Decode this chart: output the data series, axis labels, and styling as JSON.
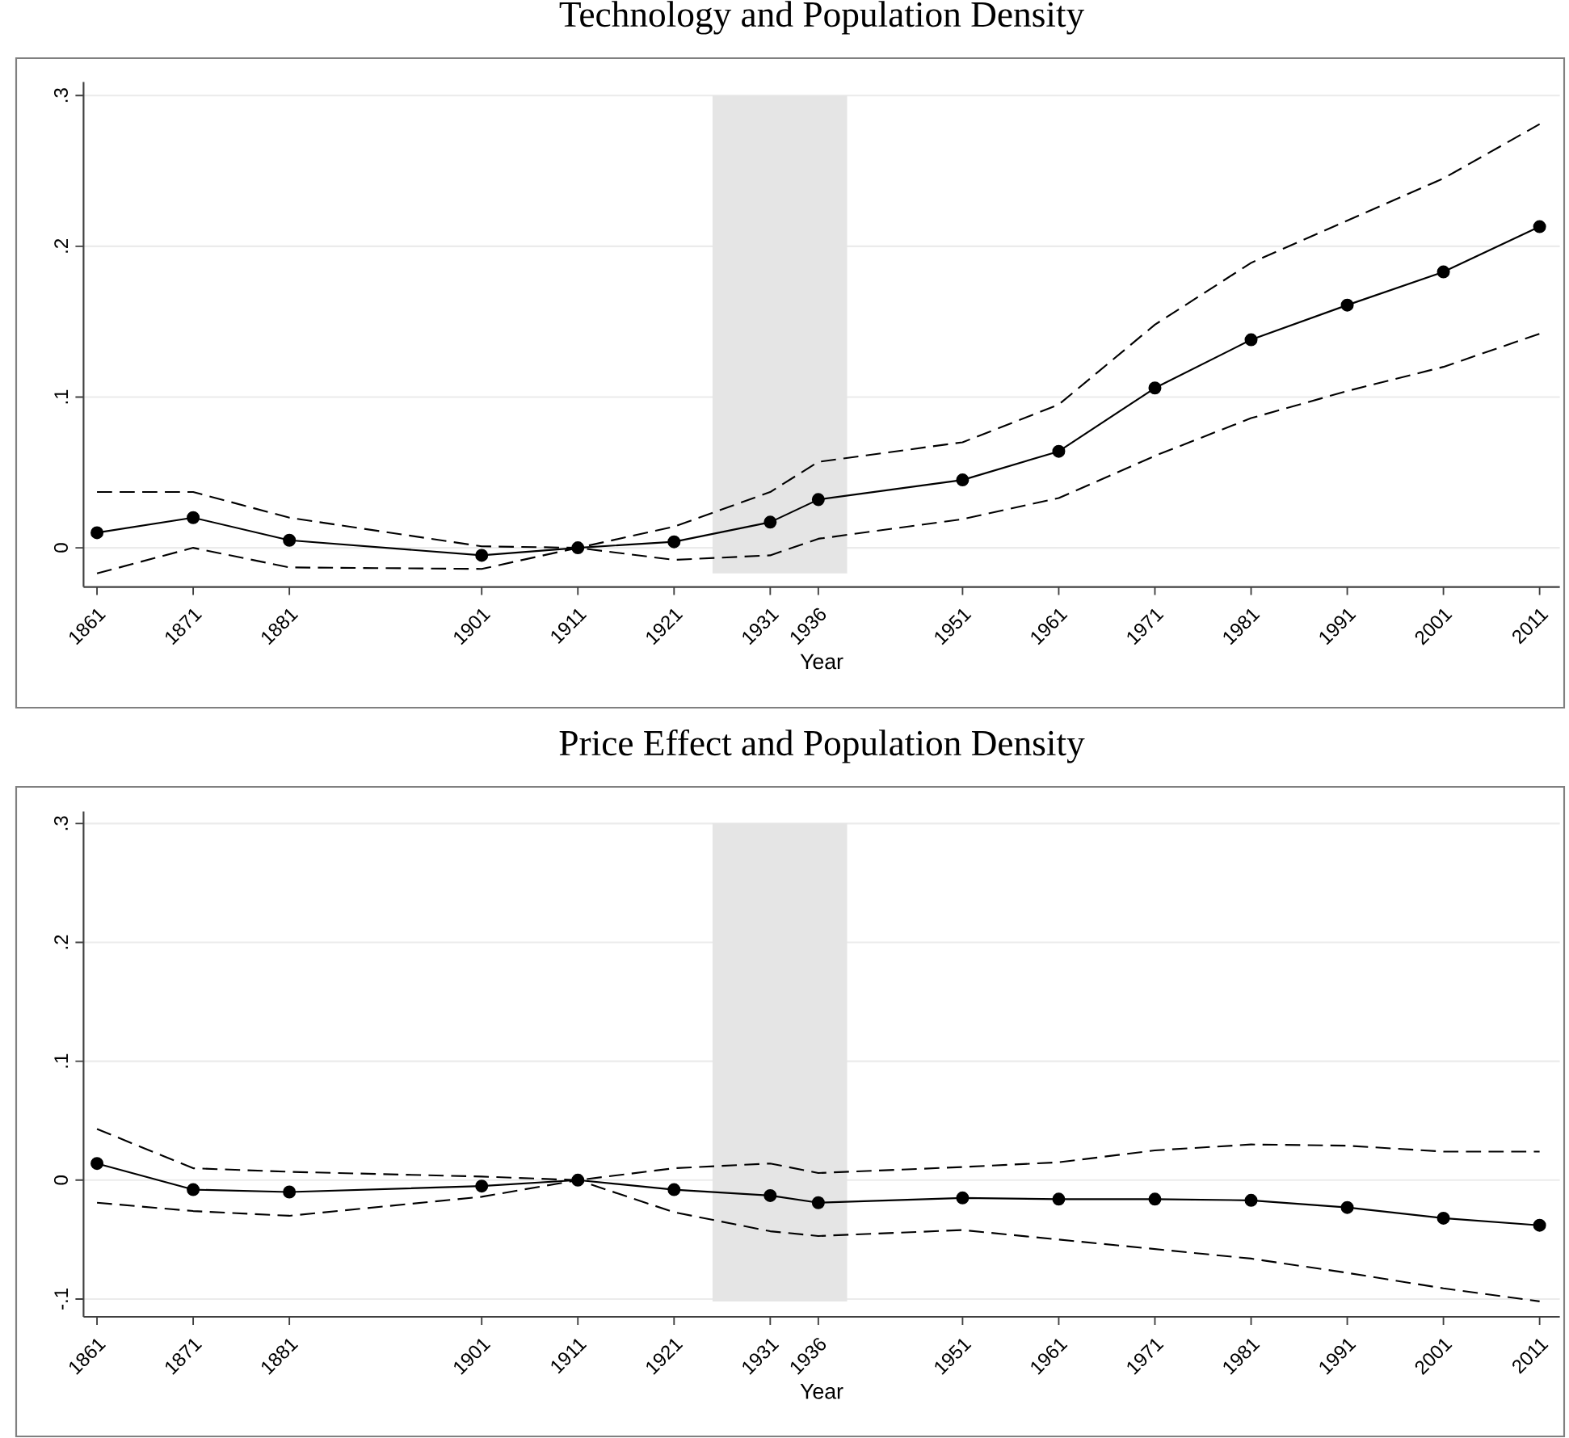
{
  "chart_data": [
    {
      "type": "line",
      "title": "Technology and Population Density",
      "xlabel": "Year",
      "x": [
        1861,
        1871,
        1881,
        1901,
        1911,
        1921,
        1931,
        1936,
        1951,
        1961,
        1971,
        1981,
        1991,
        2001,
        2011
      ],
      "series": [
        {
          "color": "#000000",
          "marker": "none",
          "line_style": "dashed",
          "values": [
            0.037,
            0.037,
            0.02,
            0.001,
            0,
            0.014,
            0.037,
            0.057,
            0.07,
            0.095,
            0.148,
            0.189,
            0.217,
            0.245,
            0.281
          ]
        },
        {
          "color": "#000000",
          "marker": "circle",
          "line_style": "solid",
          "values": [
            0.01,
            0.02,
            0.005,
            -0.005,
            0,
            0.004,
            0.017,
            0.032,
            0.045,
            0.064,
            0.106,
            0.138,
            0.161,
            0.183,
            0.213
          ]
        },
        {
          "color": "#000000",
          "marker": "none",
          "line_style": "dashed",
          "values": [
            -0.017,
            0,
            -0.013,
            -0.014,
            0,
            -0.008,
            -0.005,
            0.006,
            0.019,
            0.033,
            0.061,
            0.086,
            0.104,
            0.12,
            0.142
          ]
        }
      ],
      "bands": [
        {
          "axis": "x",
          "from": 1925,
          "to": 1939,
          "color": "#e5e5e5"
        }
      ],
      "xlim": [
        1859.6,
        2013.1
      ],
      "ylim": [
        -0.026,
        0.309
      ],
      "xticks": [
        1861,
        1871,
        1881,
        1901,
        1911,
        1921,
        1931,
        1936,
        1951,
        1961,
        1971,
        1981,
        1991,
        2001,
        2011
      ],
      "yticks": [
        {
          "value": 0,
          "label": "0"
        },
        {
          "value": 0.1,
          "label": ".1"
        },
        {
          "value": 0.2,
          "label": ".2"
        },
        {
          "value": 0.3,
          "label": ".3"
        }
      ],
      "grid": "y"
    },
    {
      "type": "line",
      "title": "Price Effect and Population Density",
      "xlabel": "Year",
      "x": [
        1861,
        1871,
        1881,
        1901,
        1911,
        1921,
        1931,
        1936,
        1951,
        1961,
        1971,
        1981,
        1991,
        2001,
        2011
      ],
      "series": [
        {
          "color": "#000000",
          "marker": "none",
          "line_style": "dashed",
          "values": [
            0.043,
            0.01,
            0.007,
            0.003,
            0,
            0.01,
            0.014,
            0.006,
            0.011,
            0.015,
            0.025,
            0.03,
            0.029,
            0.024,
            0.024
          ]
        },
        {
          "color": "#000000",
          "marker": "circle",
          "line_style": "solid",
          "values": [
            0.014,
            -0.008,
            -0.01,
            -0.005,
            0,
            -0.008,
            -0.013,
            -0.019,
            -0.015,
            -0.016,
            -0.016,
            -0.017,
            -0.023,
            -0.032,
            -0.038
          ]
        },
        {
          "color": "#000000",
          "marker": "none",
          "line_style": "dashed",
          "values": [
            -0.019,
            -0.026,
            -0.03,
            -0.014,
            0,
            -0.027,
            -0.043,
            -0.047,
            -0.042,
            -0.05,
            -0.058,
            -0.066,
            -0.078,
            -0.091,
            -0.102
          ]
        }
      ],
      "bands": [
        {
          "axis": "x",
          "from": 1925,
          "to": 1939,
          "color": "#e5e5e5"
        }
      ],
      "xlim": [
        1859.6,
        2013.1
      ],
      "ylim": [
        -0.115,
        0.31
      ],
      "xticks": [
        1861,
        1871,
        1881,
        1901,
        1911,
        1921,
        1931,
        1936,
        1951,
        1961,
        1971,
        1981,
        1991,
        2001,
        2011
      ],
      "yticks": [
        {
          "value": -0.1,
          "label": "-.1"
        },
        {
          "value": 0,
          "label": "0"
        },
        {
          "value": 0.1,
          "label": ".1"
        },
        {
          "value": 0.2,
          "label": ".2"
        },
        {
          "value": 0.3,
          "label": ".3"
        }
      ],
      "grid": "y"
    }
  ]
}
